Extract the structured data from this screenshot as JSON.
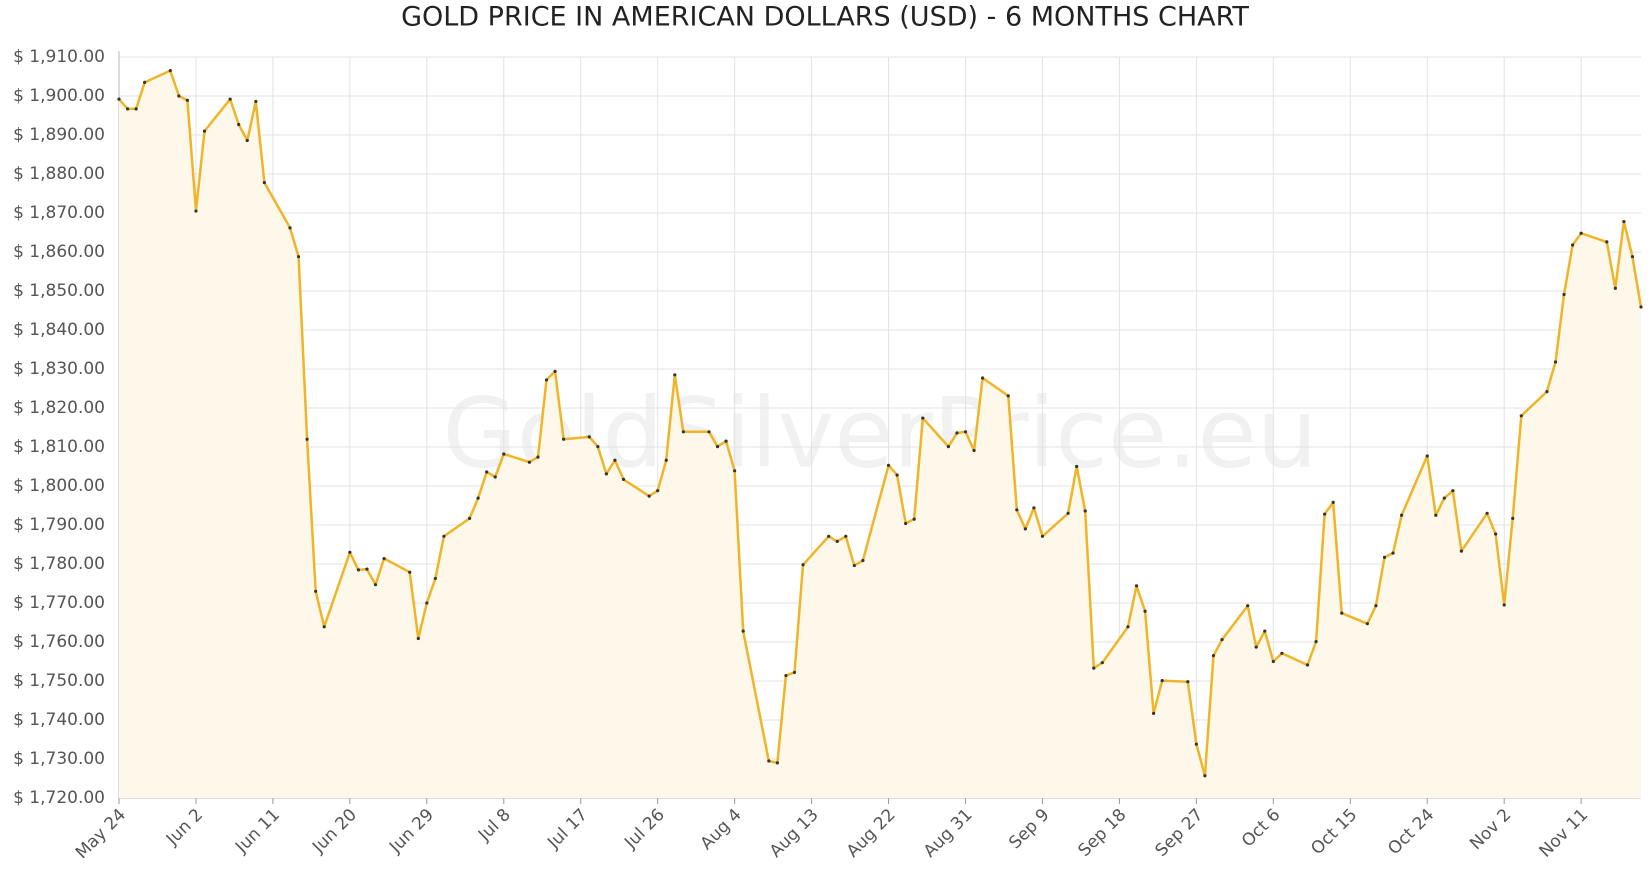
{
  "chart_data": {
    "type": "line",
    "title": "GOLD PRICE IN AMERICAN DOLLARS (USD) - 6 MONTHS CHART",
    "watermark": "GoldSilverPrice.eu",
    "x": [
      0,
      1,
      2,
      3,
      6,
      7,
      8,
      9,
      10,
      13,
      14,
      15,
      16,
      17,
      20,
      21,
      22,
      23,
      24,
      27,
      28,
      29,
      30,
      31,
      34,
      35,
      36,
      37,
      38,
      41,
      42,
      43,
      44,
      45,
      48,
      49,
      50,
      51,
      52,
      55,
      56,
      57,
      58,
      59,
      62,
      63,
      64,
      65,
      66,
      69,
      70,
      71,
      72,
      73,
      76,
      77,
      78,
      79,
      80,
      83,
      84,
      85,
      86,
      87,
      90,
      91,
      92,
      93,
      94,
      97,
      98,
      99,
      100,
      101,
      104,
      105,
      106,
      107,
      108,
      111,
      112,
      113,
      114,
      115,
      118,
      119,
      120,
      121,
      122,
      125,
      126,
      127,
      128,
      129,
      132,
      133,
      134,
      135,
      136,
      139,
      140,
      141,
      142,
      143,
      146,
      147,
      148,
      149,
      150,
      153,
      154,
      155,
      156,
      157,
      160,
      161,
      162,
      163,
      164,
      167,
      168,
      169,
      170,
      171,
      174,
      175,
      176,
      177,
      178
    ],
    "series": [
      {
        "name": "Gold",
        "color": "#f0b429",
        "values": [
          1899.2,
          1896.7,
          1896.7,
          1903.5,
          1906.5,
          1900,
          1898.9,
          1870.5,
          1891,
          1899.2,
          1892.7,
          1888.6,
          1898.6,
          1877.8,
          1866.2,
          1858.8,
          1812,
          1773,
          1763.9,
          1783,
          1778.5,
          1778.7,
          1774.7,
          1781.4,
          1777.9,
          1760.9,
          1770,
          1776.3,
          1787.1,
          1791.7,
          1796.9,
          1803.6,
          1802.3,
          1808.2,
          1806.1,
          1807.4,
          1827.2,
          1829.4,
          1812,
          1812.6,
          1810.1,
          1803.1,
          1806.6,
          1801.7,
          1797.4,
          1798.8,
          1806.6,
          1828.5,
          1813.9,
          1813.9,
          1810.1,
          1811.5,
          1803.9,
          1762.8,
          1729.5,
          1729,
          1751.4,
          1752.2,
          1779.8,
          1787.1,
          1785.8,
          1787.1,
          1779.6,
          1780.9,
          1805.3,
          1802.8,
          1790.4,
          1791.5,
          1817.4,
          1810.1,
          1813.6,
          1813.9,
          1809.1,
          1827.7,
          1823.1,
          1793.9,
          1789,
          1794.4,
          1787.1,
          1793,
          1805,
          1793.6,
          1753.3,
          1754.7,
          1763.9,
          1774.4,
          1767.9,
          1741.7,
          1750.1,
          1749.8,
          1733.8,
          1725.7,
          1756.5,
          1760.6,
          1769.3,
          1758.7,
          1762.8,
          1755,
          1757.1,
          1754.1,
          1760.1,
          1792.8,
          1795.8,
          1767.4,
          1764.7,
          1769.3,
          1781.7,
          1782.8,
          1792.5,
          1807.7,
          1792.5,
          1796.9,
          1798.8,
          1783.3,
          1793,
          1787.7,
          1769.5,
          1791.7,
          1818,
          1824.2,
          1831.8,
          1849.1,
          1861.8,
          1864.8,
          1862.6,
          1850.7,
          1867.8,
          1858.8,
          1845.9
        ]
      }
    ],
    "fill": "#fdf8ea",
    "xlim": [
      0,
      178
    ],
    "xticks": [
      {
        "value": 0,
        "label": "May 24"
      },
      {
        "value": 9,
        "label": "Jun 2"
      },
      {
        "value": 18,
        "label": "Jun 11"
      },
      {
        "value": 27,
        "label": "Jun 20"
      },
      {
        "value": 36,
        "label": "Jun 29"
      },
      {
        "value": 45,
        "label": "Jul 8"
      },
      {
        "value": 54,
        "label": "Jul 17"
      },
      {
        "value": 63,
        "label": "Jul 26"
      },
      {
        "value": 72,
        "label": "Aug 4"
      },
      {
        "value": 81,
        "label": "Aug 13"
      },
      {
        "value": 90,
        "label": "Aug 22"
      },
      {
        "value": 99,
        "label": "Aug 31"
      },
      {
        "value": 108,
        "label": "Sep 9"
      },
      {
        "value": 117,
        "label": "Sep 18"
      },
      {
        "value": 126,
        "label": "Sep 27"
      },
      {
        "value": 135,
        "label": "Oct 6"
      },
      {
        "value": 144,
        "label": "Oct 15"
      },
      {
        "value": 153,
        "label": "Oct 24"
      },
      {
        "value": 162,
        "label": "Nov 2"
      },
      {
        "value": 171,
        "label": "Nov 11"
      }
    ],
    "ylim": [
      1720,
      1910
    ],
    "yticks": [
      {
        "value": 1720,
        "label": "$ 1,720.00"
      },
      {
        "value": 1730,
        "label": "$ 1,730.00"
      },
      {
        "value": 1740,
        "label": "$ 1,740.00"
      },
      {
        "value": 1750,
        "label": "$ 1,750.00"
      },
      {
        "value": 1760,
        "label": "$ 1,760.00"
      },
      {
        "value": 1770,
        "label": "$ 1,770.00"
      },
      {
        "value": 1780,
        "label": "$ 1,780.00"
      },
      {
        "value": 1790,
        "label": "$ 1,790.00"
      },
      {
        "value": 1800,
        "label": "$ 1,800.00"
      },
      {
        "value": 1810,
        "label": "$ 1,810.00"
      },
      {
        "value": 1820,
        "label": "$ 1,820.00"
      },
      {
        "value": 1830,
        "label": "$ 1,830.00"
      },
      {
        "value": 1840,
        "label": "$ 1,840.00"
      },
      {
        "value": 1850,
        "label": "$ 1,850.00"
      },
      {
        "value": 1860,
        "label": "$ 1,860.00"
      },
      {
        "value": 1870,
        "label": "$ 1,870.00"
      },
      {
        "value": 1880,
        "label": "$ 1,880.00"
      },
      {
        "value": 1890,
        "label": "$ 1,890.00"
      },
      {
        "value": 1900,
        "label": "$ 1,900.00"
      },
      {
        "value": 1910,
        "label": "$ 1,910.00"
      }
    ],
    "grid": true
  }
}
